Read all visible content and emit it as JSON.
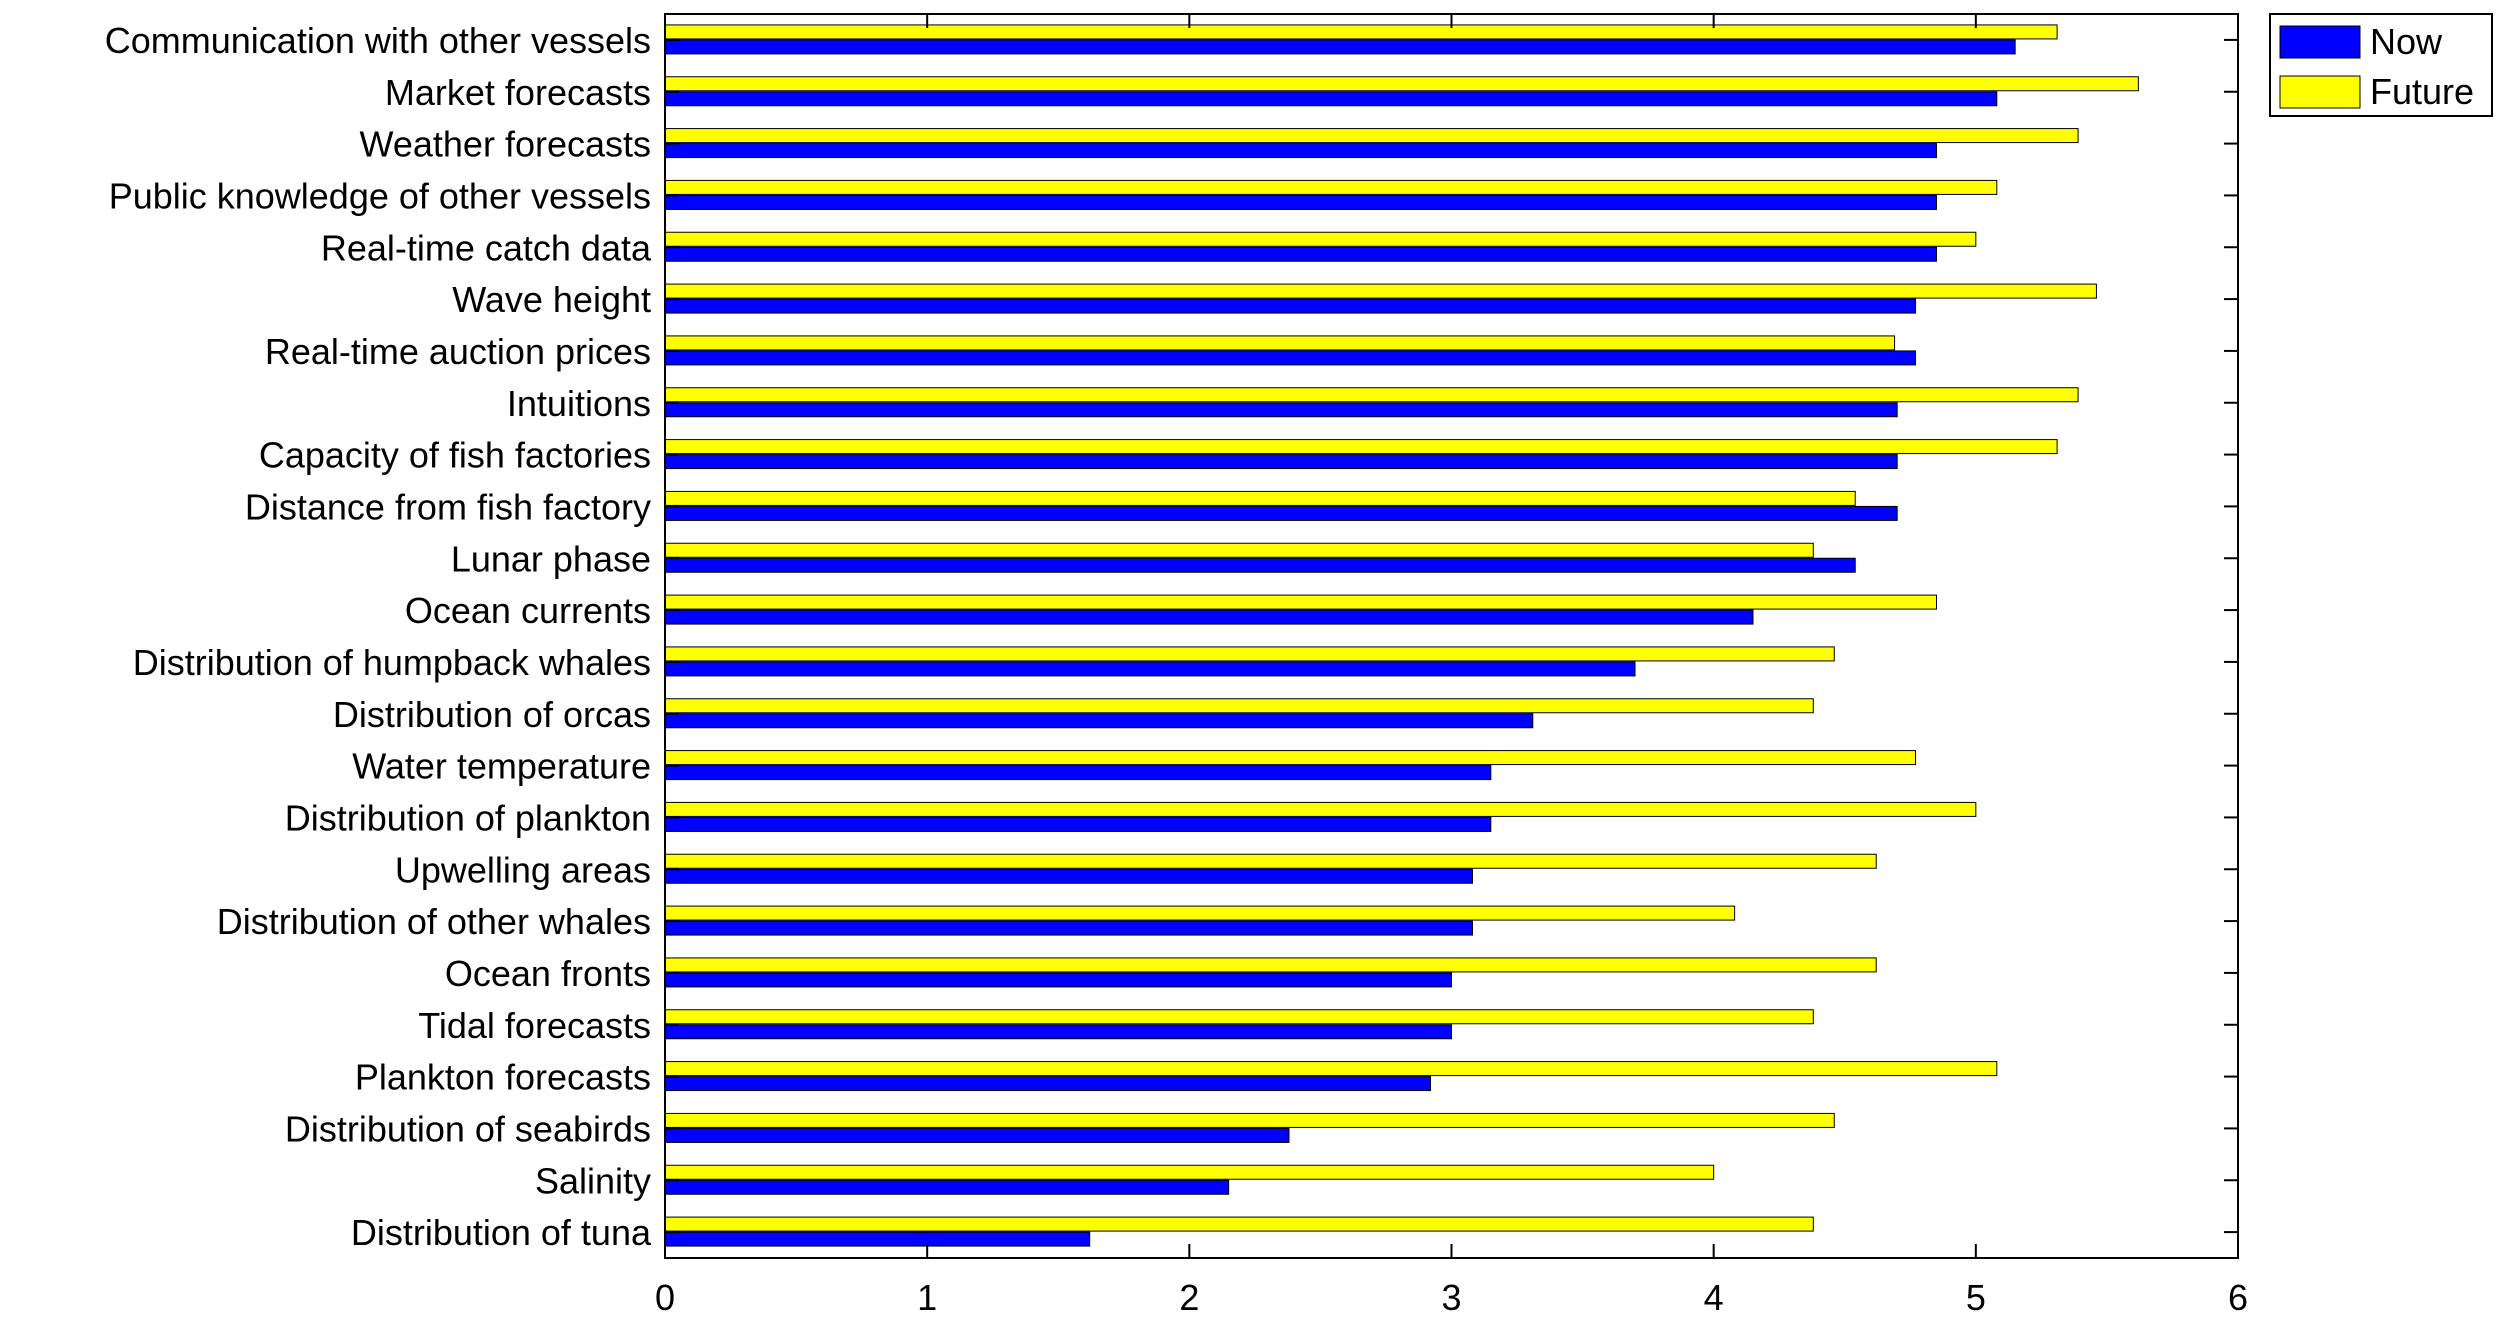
{
  "chart_data": {
    "type": "bar",
    "orientation": "horizontal",
    "categories": [
      "Communication with other vessels",
      "Market forecasts",
      "Weather forecasts",
      "Public knowledge of other vessels",
      "Real-time catch data",
      "Wave height",
      "Real-time auction prices",
      "Intuitions",
      "Capacity of fish factories",
      "Distance from fish factory",
      "Lunar phase",
      "Ocean currents",
      "Distribution of humpback whales",
      "Distribution of orcas",
      "Water temperature",
      "Distribution of plankton",
      "Upwelling areas",
      "Distribution of other whales",
      "Ocean fronts",
      "Tidal forecasts",
      "Plankton forecasts",
      "Distribution of seabirds",
      "Salinity",
      "Distribution of tuna"
    ],
    "series": [
      {
        "name": "Now",
        "color": "#0000ff",
        "values": [
          5.15,
          5.08,
          4.85,
          4.85,
          4.85,
          4.77,
          4.77,
          4.7,
          4.7,
          4.7,
          4.54,
          4.15,
          3.7,
          3.31,
          3.15,
          3.15,
          3.08,
          3.08,
          3.0,
          3.0,
          2.92,
          2.38,
          2.15,
          1.62
        ]
      },
      {
        "name": "Future",
        "color": "#ffff00",
        "values": [
          5.31,
          5.62,
          5.39,
          5.08,
          5.0,
          5.46,
          4.69,
          5.39,
          5.31,
          4.54,
          4.38,
          4.85,
          4.46,
          4.38,
          4.77,
          5.0,
          4.62,
          4.08,
          4.62,
          4.38,
          5.08,
          4.46,
          4.0,
          4.38
        ]
      }
    ],
    "xlim": [
      0,
      6
    ],
    "xticks": [
      "0",
      "1",
      "2",
      "3",
      "4",
      "5",
      "6"
    ],
    "xlabel": "",
    "ylabel": "",
    "title": "",
    "grid": false,
    "legend_position": "outside top-right"
  }
}
